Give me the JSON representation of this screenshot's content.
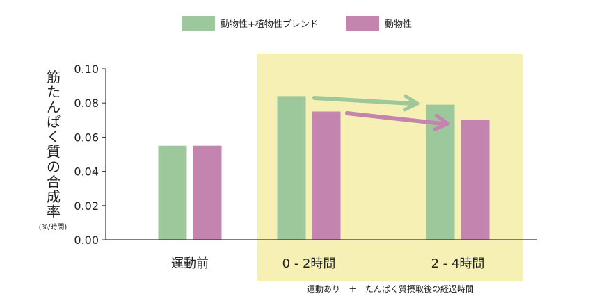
{
  "chart_data": {
    "type": "bar",
    "categories": [
      "運動前",
      "0 - 2時間",
      "2 - 4時間"
    ],
    "series": [
      {
        "name": "動物性+植物性ブレンド",
        "color": "#9dc89b",
        "values": [
          0.055,
          0.084,
          0.079
        ]
      },
      {
        "name": "動物性",
        "color": "#c385b0",
        "values": [
          0.055,
          0.075,
          0.07
        ]
      }
    ],
    "ylabel": "筋たんぱく質の合成率",
    "yunit": "(%/時間)",
    "ylim": [
      0.0,
      0.1
    ],
    "yticks": [
      "0.00",
      "0.02",
      "0.04",
      "0.06",
      "0.08",
      "0.10"
    ],
    "highlight_note": "運動あり　＋　たんぱく質摂取後の経過時間",
    "highlight_color": "#f7f0b5",
    "arrow_colors": [
      "#9dc89b",
      "#c385b0"
    ],
    "legend_position": "top-center",
    "grid": false
  }
}
